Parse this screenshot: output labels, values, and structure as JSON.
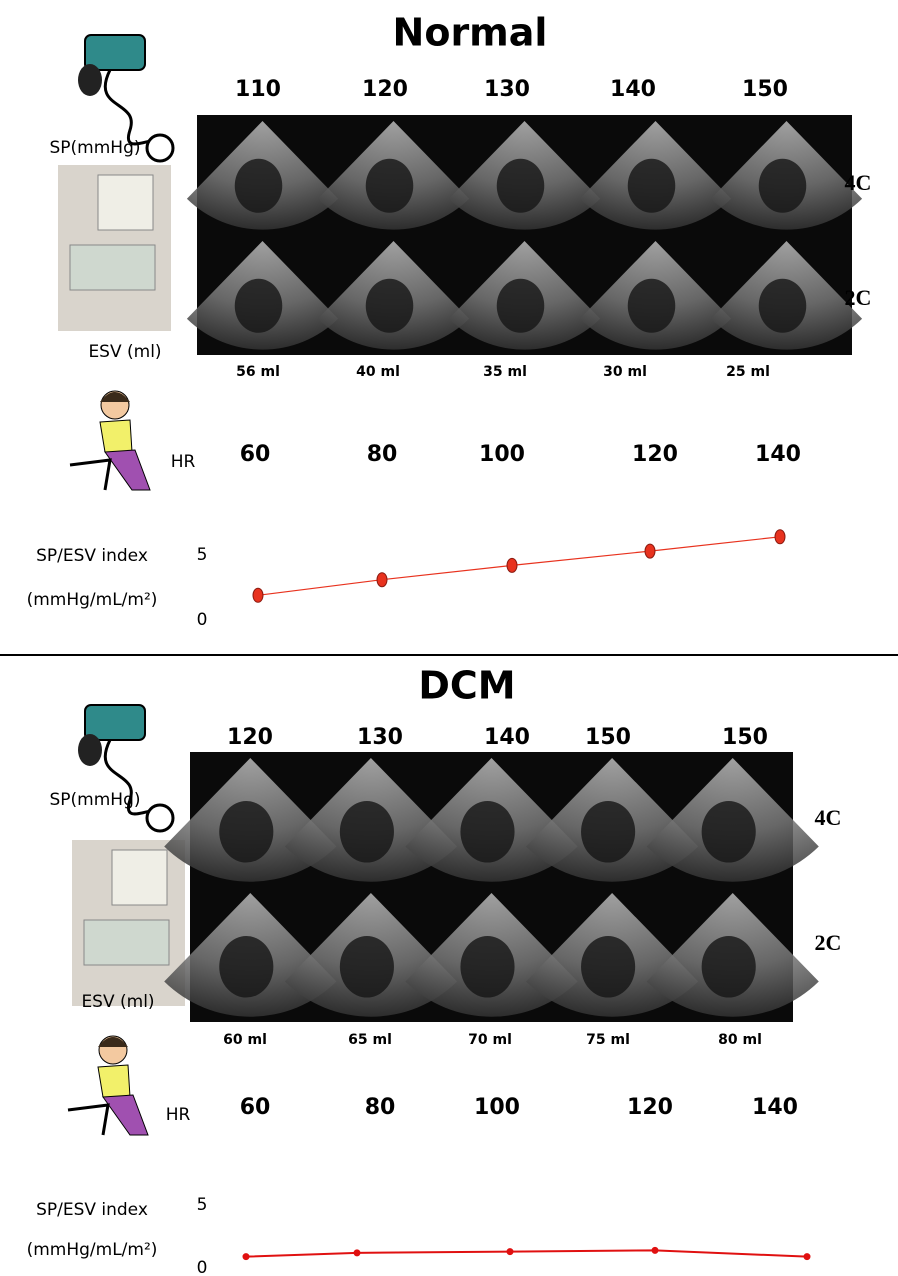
{
  "panels": [
    {
      "title": "Normal",
      "sp_label": "SP(mmHg)",
      "sp_values": [
        110,
        120,
        130,
        140,
        150
      ],
      "views": [
        "4C",
        "2C"
      ],
      "esv_label": "ESV (ml)",
      "esv_values": [
        "56 ml",
        "40 ml",
        "35 ml",
        "30 ml",
        "25 ml"
      ],
      "hr_label": "HR",
      "hr_values": [
        60,
        80,
        100,
        120,
        140
      ],
      "index_label": "SP/ESV index",
      "index_unit": "(mmHg/mL/m²)"
    },
    {
      "title": "DCM",
      "sp_label": "SP(mmHg)",
      "sp_values": [
        120,
        130,
        140,
        150,
        150
      ],
      "views": [
        "4C",
        "2C"
      ],
      "esv_label": "ESV (ml)",
      "esv_values": [
        "60 ml",
        "65 ml",
        "70 ml",
        "75 ml",
        "80 ml"
      ],
      "hr_label": "HR",
      "hr_values": [
        60,
        80,
        100,
        120,
        140
      ],
      "index_label": "SP/ESV index",
      "index_unit": "(mmHg/mL/m²)"
    }
  ],
  "chart_data": [
    {
      "type": "line",
      "values": [
        1.9,
        3.1,
        4.2,
        5.3,
        6.4
      ],
      "color": "#e8321e",
      "marker": "big",
      "ylim": [
        0,
        7
      ],
      "yticks": [
        0,
        5
      ]
    },
    {
      "type": "line",
      "values": [
        0.9,
        1.2,
        1.3,
        1.4,
        0.9
      ],
      "color": "#e01010",
      "marker": "small",
      "ylim": [
        0,
        5
      ],
      "yticks": [
        0,
        5
      ]
    }
  ]
}
